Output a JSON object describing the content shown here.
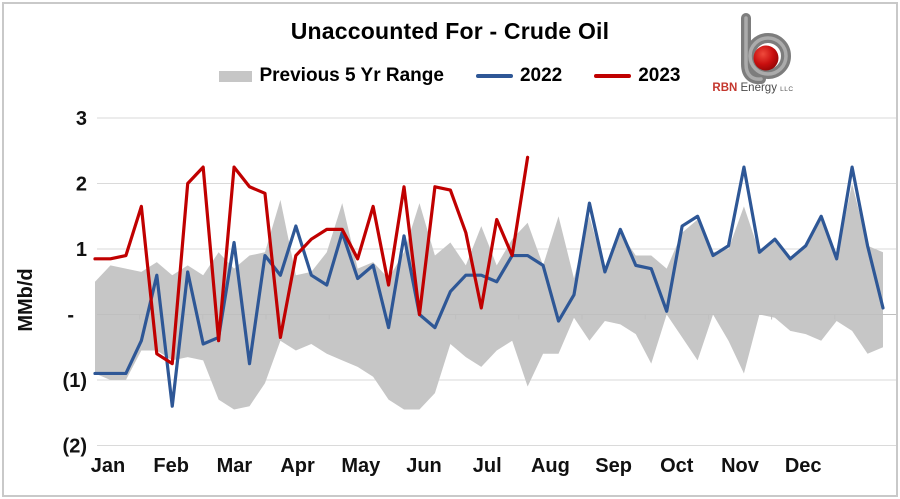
{
  "title": "Unaccounted For - Crude Oil",
  "legend": {
    "range_label": "Previous 5 Yr Range",
    "s2022_label": "2022",
    "s2023_label": "2023"
  },
  "logo": {
    "rbn": "RBN",
    "energy": "Energy",
    "llc": "LLC"
  },
  "colors": {
    "band": "#C6C6C6",
    "s2022": "#2E5796",
    "s2023": "#C00000",
    "grid": "#DADADA",
    "axis": "#BFBFBF",
    "text": "#111111"
  },
  "chart_data": {
    "type": "line",
    "title": "Unaccounted For - Crude Oil",
    "ylabel": "MMb/d",
    "xlabel": "",
    "x_unit": "weekly, Jan-Dec",
    "n_weeks": 52,
    "grid": true,
    "legend_position": "top",
    "ylim": [
      -2.15,
      3.25
    ],
    "x_tick_labels": [
      "Jan",
      "Feb",
      "Mar",
      "Apr",
      "May",
      "Jun",
      "Jul",
      "Aug",
      "Sep",
      "Oct",
      "Nov",
      "Dec"
    ],
    "y_ticks": [
      {
        "value": 3,
        "label": "3"
      },
      {
        "value": 2,
        "label": "2"
      },
      {
        "value": 1,
        "label": "1"
      },
      {
        "value": 0,
        "label": "-"
      },
      {
        "value": -1,
        "label": "(1)"
      },
      {
        "value": -2,
        "label": "(2)"
      }
    ],
    "band": {
      "name": "Previous 5 Yr Range",
      "color": "#C6C6C6",
      "upper": [
        0.5,
        0.75,
        0.7,
        0.65,
        0.8,
        0.6,
        0.75,
        0.6,
        0.95,
        0.7,
        0.9,
        0.95,
        1.75,
        0.6,
        0.65,
        0.95,
        1.7,
        0.7,
        0.8,
        0.55,
        0.95,
        1.7,
        0.9,
        1.1,
        0.75,
        1.35,
        0.75,
        1.15,
        1.4,
        0.75,
        1.5,
        0.55,
        1.5,
        0.65,
        1.25,
        0.9,
        0.9,
        0.7,
        1.25,
        1.45,
        0.95,
        1.0,
        1.65,
        0.95,
        1.15,
        0.85,
        1.05,
        1.5,
        0.85,
        2.0,
        1.05,
        0.95
      ],
      "lower": [
        -0.9,
        -1.0,
        -1.0,
        -0.55,
        -0.55,
        -0.7,
        -0.65,
        -0.7,
        -1.3,
        -1.45,
        -1.4,
        -1.05,
        -0.4,
        -0.55,
        -0.45,
        -0.6,
        -0.7,
        -0.8,
        -0.95,
        -1.3,
        -1.45,
        -1.45,
        -1.2,
        -0.45,
        -0.65,
        -0.8,
        -0.55,
        -0.4,
        -1.1,
        -0.6,
        -0.6,
        -0.05,
        -0.4,
        -0.1,
        -0.15,
        -0.3,
        -0.75,
        0.0,
        -0.35,
        -0.7,
        0.0,
        -0.4,
        -0.9,
        0.0,
        -0.05,
        -0.25,
        -0.3,
        -0.4,
        -0.1,
        -0.25,
        -0.6,
        -0.5
      ]
    },
    "series": [
      {
        "name": "2022",
        "color": "#2E5796",
        "values": [
          -0.9,
          -0.9,
          -0.9,
          -0.4,
          0.6,
          -1.4,
          0.65,
          -0.45,
          -0.35,
          1.1,
          -0.75,
          0.9,
          0.6,
          1.35,
          0.6,
          0.45,
          1.25,
          0.55,
          0.75,
          -0.2,
          1.2,
          0.0,
          -0.2,
          0.35,
          0.6,
          0.6,
          0.5,
          0.9,
          0.9,
          0.75,
          -0.1,
          0.3,
          1.7,
          0.65,
          1.3,
          0.75,
          0.7,
          0.05,
          1.35,
          1.5,
          0.9,
          1.05,
          2.25,
          0.95,
          1.15,
          0.85,
          1.05,
          1.5,
          0.85,
          2.25,
          1.05,
          0.1
        ]
      },
      {
        "name": "2023",
        "color": "#C00000",
        "values": [
          0.85,
          0.85,
          0.9,
          1.65,
          -0.6,
          -0.75,
          2.0,
          2.25,
          -0.4,
          2.25,
          1.95,
          1.85,
          -0.35,
          0.9,
          1.15,
          1.3,
          1.3,
          0.85,
          1.65,
          0.45,
          1.95,
          0.0,
          1.95,
          1.9,
          1.25,
          0.1,
          1.45,
          0.9,
          2.4
        ]
      }
    ]
  }
}
